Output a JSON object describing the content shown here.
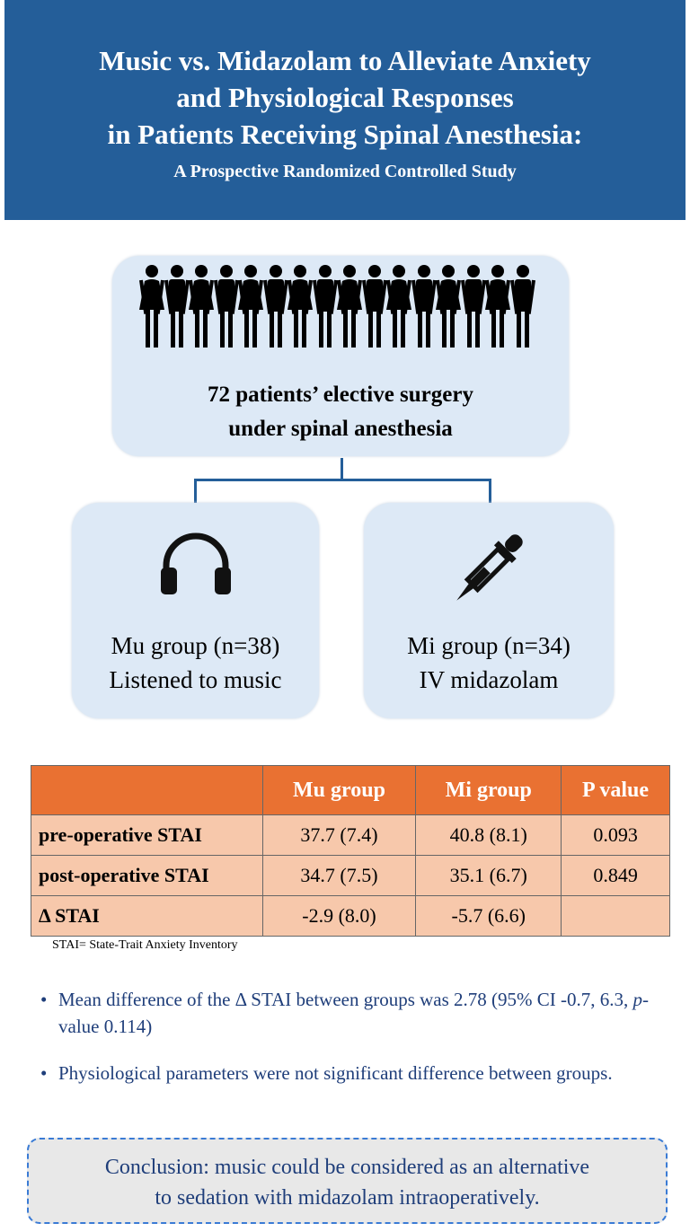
{
  "header": {
    "title_lines": [
      "Music vs. Midazolam to Alleviate Anxiety",
      "and Physiological Responses",
      "in Patients Receiving Spinal Anesthesia:"
    ],
    "subtitle": "A Prospective Randomized Controlled Study",
    "color": "#245e99"
  },
  "population": {
    "icon": "people-icon",
    "count_figures": 16,
    "lines": [
      "72 patients’ elective surgery",
      "under spinal anesthesia"
    ]
  },
  "groups": [
    {
      "icon": "headphones-icon",
      "lines": [
        "Mu group (n=38)",
        "Listened to music"
      ]
    },
    {
      "icon": "syringe-dropper-icon",
      "lines": [
        "Mi group (n=34)",
        "IV midazolam"
      ]
    }
  ],
  "table": {
    "headers": [
      "",
      "Mu group",
      "Mi group",
      "P value"
    ],
    "rows": [
      [
        "pre-operative STAI",
        "37.7 (7.4)",
        "40.8 (8.1)",
        "0.093"
      ],
      [
        "post-operative STAI",
        "34.7 (7.5)",
        "35.1 (6.7)",
        "0.849"
      ],
      [
        "Δ STAI",
        "-2.9 (8.0)",
        "-5.7 (6.6)",
        ""
      ]
    ],
    "header_color": "#e97132",
    "row_color": "#f7c8ab"
  },
  "footnote": "STAI= State-Trait Anxiety Inventory",
  "bullets": [
    {
      "pre": "Mean difference of the Δ STAI between groups was 2.78 (95% CI -0.7, 6.3, ",
      "italic": "p",
      "post": "-value 0.114)"
    },
    {
      "text": "Physiological parameters were not significant difference between groups."
    }
  ],
  "conclusion": [
    "Conclusion: music could be considered as an alternative",
    "to sedation with midazolam intraoperatively."
  ]
}
